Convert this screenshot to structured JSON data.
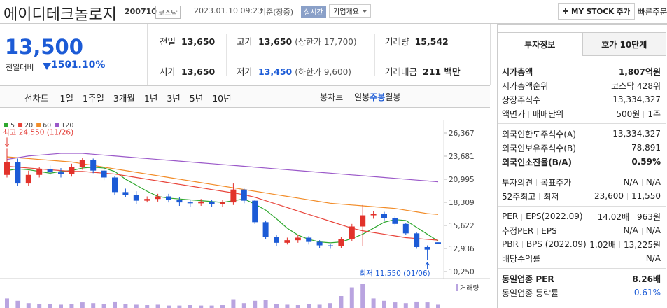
{
  "header": {
    "name": "에이디테크놀로지",
    "code": "200710",
    "market": "코스닥",
    "datetime": "2023.01.10 09:23",
    "basis": "기준(장중)",
    "realtime": "실시간",
    "company_overview": "기업개요",
    "my_stock": "MY STOCK 추가",
    "quick_order": "빠른주문"
  },
  "quote": {
    "price": "13,500",
    "change_label": "전일대비",
    "change": "150",
    "change_rate": "-1.10%"
  },
  "summary": {
    "rows": [
      [
        {
          "label": "전일",
          "value": "13,650"
        },
        {
          "label": "고가",
          "value": "13,650",
          "note": "(상한가 17,700)"
        },
        {
          "label": "거래량",
          "value": "15,542"
        }
      ],
      [
        {
          "label": "시가",
          "value": "13,650"
        },
        {
          "label": "저가",
          "value": "13,450",
          "note": "(하한가 9,600)"
        },
        {
          "label": "거래대금",
          "value": "211 백만"
        }
      ]
    ]
  },
  "toolbar": {
    "line_chart": "선차트",
    "line_periods": [
      "1일",
      "1주일",
      "3개월",
      "1년",
      "3년",
      "5년",
      "10년"
    ],
    "candle_chart": "봉차트",
    "candle_periods": [
      "일봉",
      "주봉",
      "월봉"
    ],
    "selected_candle_period": 1
  },
  "chart_data": {
    "type": "candlestick",
    "open": [
      21500,
      23000,
      20500,
      21500,
      22200,
      21800,
      21600,
      22400,
      23200,
      22000,
      21200,
      19500,
      19200,
      18500,
      18700,
      19000,
      18600,
      18300,
      18200,
      18400,
      18100,
      18300,
      19800,
      18500,
      16000,
      14300,
      13600,
      13900,
      14200,
      13700,
      13300,
      13200,
      14000,
      15500,
      16800,
      17000,
      16500,
      15800,
      14700,
      13100,
      13650
    ],
    "high": [
      24550,
      23400,
      22000,
      22400,
      22600,
      22300,
      22800,
      23500,
      23400,
      22300,
      21400,
      19900,
      19600,
      19000,
      19300,
      19300,
      18900,
      18600,
      18700,
      18600,
      18600,
      20500,
      19900,
      18600,
      16200,
      14500,
      14200,
      14500,
      14400,
      13900,
      13500,
      14300,
      15800,
      18000,
      17300,
      17200,
      16700,
      15900,
      14800,
      13300,
      13650
    ],
    "low": [
      21200,
      20200,
      20200,
      21200,
      21500,
      21200,
      21300,
      22100,
      21700,
      20900,
      19200,
      18900,
      18100,
      18300,
      18400,
      18300,
      17900,
      17800,
      17900,
      17800,
      17800,
      18000,
      18200,
      15800,
      14000,
      13200,
      13400,
      13600,
      13400,
      13000,
      12900,
      13000,
      13800,
      13200,
      16400,
      16200,
      15600,
      14500,
      12900,
      11550,
      13450
    ],
    "close": [
      23000,
      20500,
      21500,
      22200,
      21800,
      21600,
      22400,
      23200,
      22000,
      21200,
      19500,
      19200,
      18500,
      18700,
      19000,
      18600,
      18300,
      18200,
      18400,
      18100,
      18300,
      19800,
      18500,
      16000,
      14300,
      13600,
      13900,
      14200,
      13700,
      13300,
      13200,
      14000,
      15500,
      16800,
      17000,
      16500,
      15800,
      14700,
      13100,
      12800,
      13500
    ],
    "volume": [
      120000,
      90000,
      60000,
      50000,
      45000,
      40000,
      50000,
      70000,
      60000,
      50000,
      80000,
      45000,
      40000,
      35000,
      40000,
      30000,
      30000,
      35000,
      30000,
      30000,
      35000,
      110000,
      60000,
      90000,
      100000,
      50000,
      40000,
      35000,
      45000,
      40000,
      60000,
      150000,
      260000,
      300000,
      120000,
      90000,
      70000,
      60000,
      80000,
      70000,
      40000
    ],
    "volume_label": "거래량",
    "volume_color": "#b9a4e0",
    "up_color": "#e2322b",
    "down_color": "#1c5bd6",
    "series": [
      {
        "name": "5",
        "color": "#2fa82f",
        "values": [
          22000,
          22200,
          22100,
          21900,
          21700,
          21900,
          22000,
          22300,
          22400,
          22300,
          21900,
          21000,
          20300,
          19600,
          19000,
          18800,
          18700,
          18600,
          18500,
          18400,
          18300,
          18500,
          18700,
          18100,
          17400,
          16400,
          15300,
          14500,
          14000,
          13700,
          13600,
          13700,
          14100,
          14600,
          15300,
          16000,
          16300,
          16200,
          15400,
          14600,
          13800
        ]
      },
      {
        "name": "20",
        "color": "#e8443a",
        "values": [
          22500,
          22400,
          22300,
          22200,
          22100,
          22000,
          21900,
          21900,
          21800,
          21700,
          21600,
          21400,
          21200,
          21000,
          20800,
          20600,
          20400,
          20200,
          20000,
          19800,
          19600,
          19400,
          19200,
          18900,
          18500,
          18100,
          17700,
          17300,
          16900,
          16500,
          16100,
          15700,
          15300,
          15000,
          14800,
          14600,
          14400,
          14200,
          14100,
          14000,
          13900
        ]
      },
      {
        "name": "60",
        "color": "#f28c28",
        "values": [
          23600,
          23500,
          23400,
          23300,
          23200,
          23100,
          23000,
          22800,
          22600,
          22400,
          22200,
          22000,
          21800,
          21600,
          21400,
          21200,
          21000,
          20800,
          20600,
          20400,
          20200,
          20000,
          19800,
          19600,
          19400,
          19200,
          19000,
          18800,
          18600,
          18400,
          18200,
          18100,
          18000,
          17900,
          17800,
          17700,
          17600,
          17400,
          17200,
          17000,
          16900
        ]
      },
      {
        "name": "120",
        "color": "#9b59c9",
        "values": [
          23300,
          23500,
          23700,
          23800,
          23900,
          24000,
          24000,
          24000,
          23900,
          23800,
          23700,
          23600,
          23500,
          23400,
          23300,
          23200,
          23100,
          23000,
          22900,
          22800,
          22700,
          22600,
          22500,
          22400,
          22300,
          22200,
          22100,
          22000,
          21900,
          21800,
          21700,
          21600,
          21500,
          21400,
          21300,
          21200,
          21100,
          21000,
          20900,
          20800,
          20700
        ]
      }
    ],
    "ylim": [
      10250,
      26367
    ],
    "yticks": [
      {
        "value": 26367,
        "label": "26,367"
      },
      {
        "value": 23681,
        "label": "23,681"
      },
      {
        "value": 20995,
        "label": "20,995"
      },
      {
        "value": 18309,
        "label": "18,309"
      },
      {
        "value": 15622,
        "label": "15,622"
      },
      {
        "value": 12936,
        "label": "12,936"
      },
      {
        "value": 10250,
        "label": "10,250"
      }
    ],
    "annotations": [
      {
        "text": "최고 24,550 (11/26)",
        "color": "#e2322b"
      },
      {
        "text": "최저 11,550 (01/06)",
        "color": "#1c5bd6"
      }
    ]
  },
  "info": {
    "tabs": [
      "투자정보",
      "호가 10단계"
    ],
    "selected_tab": 0,
    "sections": [
      [
        {
          "labels": [
            "시가총액"
          ],
          "values": [
            "1,807억원"
          ],
          "bold": true
        },
        {
          "labels": [
            "시가총액순위"
          ],
          "values": [
            "코스닥 428위"
          ]
        },
        {
          "labels": [
            "상장주식수"
          ],
          "values": [
            "13,334,327"
          ]
        },
        {
          "labels": [
            "액면가",
            "매매단위"
          ],
          "values": [
            "500원",
            "1주"
          ]
        }
      ],
      [
        {
          "labels": [
            "외국인한도주식수(A)"
          ],
          "values": [
            "13,334,327"
          ]
        },
        {
          "labels": [
            "외국인보유주식수(B)"
          ],
          "values": [
            "78,891"
          ]
        },
        {
          "labels": [
            "외국인소진율(B/A)"
          ],
          "values": [
            "0.59%"
          ],
          "bold": true
        }
      ],
      [
        {
          "labels": [
            "투자의견",
            "목표주가"
          ],
          "values": [
            "N/A",
            "N/A"
          ]
        },
        {
          "labels": [
            "52주최고",
            "최저"
          ],
          "values": [
            "23,600",
            "11,550"
          ]
        }
      ],
      [
        {
          "labels": [
            "PER",
            "EPS(2022.09)"
          ],
          "values": [
            "14.02배",
            "963원"
          ]
        },
        {
          "labels": [
            "추정PER",
            "EPS"
          ],
          "values": [
            "N/A",
            "N/A"
          ]
        },
        {
          "labels": [
            "PBR",
            "BPS (2022.09)"
          ],
          "values": [
            "1.02배",
            "13,225원"
          ]
        },
        {
          "labels": [
            "배당수익률"
          ],
          "values": [
            "N/A"
          ]
        }
      ],
      [
        {
          "labels": [
            "동일업종 PER"
          ],
          "values": [
            "8.26배"
          ],
          "bold": true
        },
        {
          "labels": [
            "동일업종 등락률"
          ],
          "values": [
            "-0.61%"
          ],
          "color": "#1c5bd6"
        }
      ]
    ]
  }
}
